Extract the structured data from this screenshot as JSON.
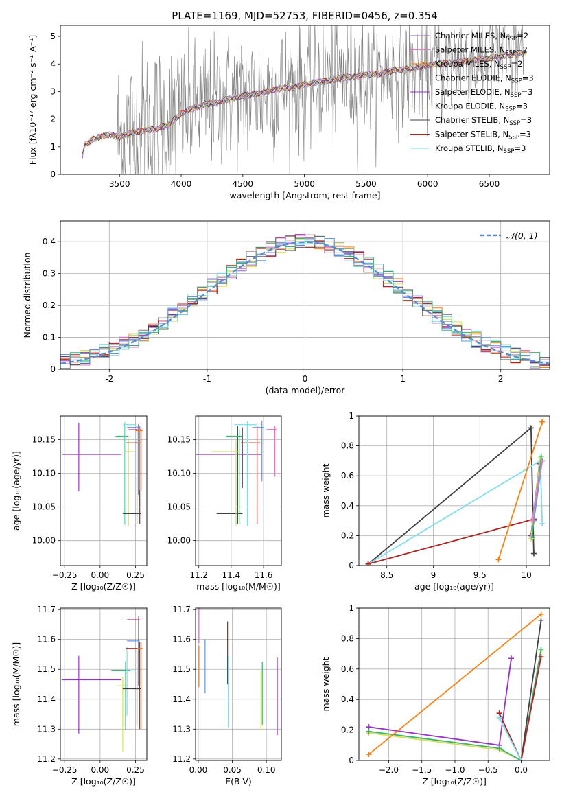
{
  "figure_title": "PLATE=1169, MJD=52753, FIBERID=0456, z=0.354",
  "colors": {
    "Chabrier MILES": "#9467bd",
    "Salpeter MILES": "#e377c2",
    "Kroupa MILES": "#ff7f0e",
    "Chabrier ELODIE": "#7f7f7f",
    "Salpeter ELODIE": "#9932cc",
    "Kroupa ELODIE": "#d4e157",
    "Chabrier STELIB": "#404040",
    "Salpeter STELIB": "#b22222",
    "Kroupa STELIB": "#80deea",
    "extra_blue": "#6495ed",
    "extra_green": "#3cb371",
    "normal_curve": "#5b8bd4",
    "grid": "#b0b0b0"
  },
  "chart_data": [
    {
      "id": "spectrum",
      "type": "line",
      "title": "PLATE=1169, MJD=52753, FIBERID=0456, z=0.354",
      "xlabel": "wavelength [Angstrom, rest frame]",
      "ylabel": "Flux [fλ10⁻¹⁷ erg cm⁻² s⁻¹ A⁻¹]",
      "xlim": [
        3020,
        6990
      ],
      "ylim": [
        0,
        5.4
      ],
      "xticks": [
        3500,
        4000,
        4500,
        5000,
        5500,
        6000,
        6500
      ],
      "yticks": [
        0,
        1,
        2,
        3,
        4,
        5
      ],
      "grid": false,
      "legend_position": "upper right",
      "legend": [
        {
          "label": "Chabrier MILES, N",
          "sub": "SSP",
          "suffix": "=2",
          "color": "#9467bd"
        },
        {
          "label": "Salpeter MILES, N",
          "sub": "SSP",
          "suffix": "=2",
          "color": "#e377c2"
        },
        {
          "label": "Kroupa MILES, N",
          "sub": "SSP",
          "suffix": "=2",
          "color": "#ff7f0e"
        },
        {
          "label": "Chabrier ELODIE, N",
          "sub": "SSP",
          "suffix": "=3",
          "color": "#7f7f7f"
        },
        {
          "label": "Salpeter ELODIE, N",
          "sub": "SSP",
          "suffix": "=3",
          "color": "#9932cc"
        },
        {
          "label": "Kroupa ELODIE, N",
          "sub": "SSP",
          "suffix": "=3",
          "color": "#d4e157"
        },
        {
          "label": "Chabrier STELIB, N",
          "sub": "SSP",
          "suffix": "=3",
          "color": "#404040"
        },
        {
          "label": "Salpeter STELIB, N",
          "sub": "SSP",
          "suffix": "=3",
          "color": "#b22222"
        },
        {
          "label": "Kroupa STELIB, N",
          "sub": "SSP",
          "suffix": "=3",
          "color": "#80deea"
        }
      ],
      "model_continuum": {
        "x": [
          3200,
          3220,
          3300,
          3400,
          3500,
          3600,
          3700,
          3800,
          3900,
          4000,
          4100,
          4200,
          4300,
          4400,
          4500,
          4600,
          4700,
          4800,
          4900,
          5000,
          5100,
          5200,
          5300,
          5400,
          5500,
          5600,
          5700,
          5800,
          5900,
          6000,
          6100,
          6200,
          6300,
          6400,
          6500,
          6600,
          6700,
          6800
        ],
        "y": [
          0.7,
          1.1,
          1.3,
          1.45,
          1.35,
          1.5,
          1.6,
          1.65,
          1.8,
          2.2,
          2.4,
          2.55,
          2.6,
          2.75,
          2.85,
          2.9,
          3.0,
          3.1,
          3.15,
          3.25,
          3.35,
          3.4,
          3.5,
          3.55,
          3.6,
          3.65,
          3.75,
          3.8,
          3.85,
          3.95,
          4.0,
          4.05,
          4.1,
          4.15,
          4.2,
          4.3,
          4.35,
          4.4
        ]
      },
      "observed_data_range": [
        3480,
        6790
      ]
    },
    {
      "id": "residuals",
      "type": "histogram",
      "xlabel": "(data-model)/error",
      "ylabel": "Normed distribution",
      "xlim": [
        -2.5,
        2.5
      ],
      "ylim": [
        0,
        0.465
      ],
      "xticks": [
        -2,
        -1,
        0,
        1,
        2
      ],
      "yticks": [
        0.0,
        0.1,
        0.2,
        0.3,
        0.4
      ],
      "grid": true,
      "legend_position": "upper right",
      "legend": [
        {
          "label": "𝒩(0, 1)",
          "color": "#5b8bd4",
          "style": "dashed"
        }
      ],
      "bin_width": 0.1,
      "bin_start": -2.5,
      "series_count": 11
    },
    {
      "id": "age-vs-Z",
      "type": "errorbar",
      "xlabel": "Z [log₁₀(Z/Z☉)]",
      "ylabel": "age  [log₁₀(age/yr)]",
      "xlim": [
        -0.28,
        0.33
      ],
      "ylim": [
        9.963,
        10.185
      ],
      "xticks": [
        -0.25,
        0.0,
        0.25
      ],
      "xticklabels": [
        "−0.25",
        "0.00",
        "0.25"
      ],
      "yticks": [
        10.0,
        10.05,
        10.1,
        10.15
      ],
      "yticklabels": [
        "10.00",
        "10.05",
        "10.10",
        "10.15"
      ],
      "grid": true,
      "points": [
        {
          "x": -0.15,
          "xerr": [
            0.12,
            0.3
          ],
          "y": 10.128,
          "yerr": [
            0.055,
            0.047
          ],
          "color": "#9932cc"
        },
        {
          "x": 0.17,
          "xerr": [
            0.06,
            0.03
          ],
          "y": 10.155,
          "yerr": [
            0.13,
            0.02
          ],
          "color": "#3cb371"
        },
        {
          "x": 0.18,
          "xerr": [
            0.02,
            0.07
          ],
          "y": 10.172,
          "yerr": [
            0.15,
            0.005
          ],
          "color": "#80deea"
        },
        {
          "x": 0.2,
          "xerr": [
            0.03,
            0.05
          ],
          "y": 10.132,
          "yerr": [
            0.11,
            0.02
          ],
          "color": "#d4e157"
        },
        {
          "x": 0.26,
          "xerr": [
            0.1,
            0.03
          ],
          "y": 10.04,
          "yerr": [
            0.015,
            0.13
          ],
          "color": "#404040"
        },
        {
          "x": 0.28,
          "xerr": [
            0.1,
            0.01
          ],
          "y": 10.145,
          "yerr": [
            0.12,
            0.025
          ],
          "color": "#b22222"
        },
        {
          "x": 0.28,
          "xerr": [
            0.08,
            0.01
          ],
          "y": 10.165,
          "yerr": [
            0.09,
            0.005
          ],
          "color": "#e377c2"
        },
        {
          "x": 0.29,
          "xerr": [
            0.04,
            0.01
          ],
          "y": 10.163,
          "yerr": [
            0.09,
            0.005
          ],
          "color": "#ff7f0e"
        },
        {
          "x": 0.27,
          "xerr": [
            0.08,
            0.01
          ],
          "y": 10.168,
          "yerr": [
            0.1,
            0.005
          ],
          "color": "#6495ed"
        }
      ]
    },
    {
      "id": "age-vs-mass",
      "type": "errorbar",
      "xlabel": "mass [log₁₀(M/M☉)]",
      "ylabel": "",
      "xlim": [
        11.18,
        11.71
      ],
      "ylim": [
        9.963,
        10.185
      ],
      "xticks": [
        11.2,
        11.4,
        11.6
      ],
      "yticks": [
        10.0,
        10.05,
        10.1,
        10.15
      ],
      "yticklabels": [
        "10.00",
        "10.05",
        "10.10",
        "10.15"
      ],
      "grid": true,
      "points": [
        {
          "x": 11.47,
          "xerr": [
            0.3,
            0.12
          ],
          "y": 10.128,
          "yerr": [
            0.05,
            0.04
          ],
          "color": "#9932cc"
        },
        {
          "x": 11.44,
          "xerr": [
            0.13,
            0.03
          ],
          "y": 10.04,
          "yerr": [
            0.015,
            0.13
          ],
          "color": "#404040"
        },
        {
          "x": 11.45,
          "xerr": [
            0.08,
            0.02
          ],
          "y": 10.155,
          "yerr": [
            0.13,
            0.01
          ],
          "color": "#3cb371"
        },
        {
          "x": 11.43,
          "xerr": [
            0.15,
            0.02
          ],
          "y": 10.132,
          "yerr": [
            0.11,
            0.02
          ],
          "color": "#d4e157"
        },
        {
          "x": 11.56,
          "xerr": [
            0.1,
            0.02
          ],
          "y": 10.145,
          "yerr": [
            0.12,
            0.025
          ],
          "color": "#b22222"
        },
        {
          "x": 11.5,
          "xerr": [
            0.08,
            0.06
          ],
          "y": 10.172,
          "yerr": [
            0.15,
            0.005
          ],
          "color": "#80deea"
        },
        {
          "x": 11.59,
          "xerr": [
            0.06,
            0.01
          ],
          "y": 10.168,
          "yerr": [
            0.08,
            0.01
          ],
          "color": "#6495ed"
        },
        {
          "x": 11.67,
          "xerr": [
            0.05,
            0.01
          ],
          "y": 10.165,
          "yerr": [
            0.07,
            0.005
          ],
          "color": "#e377c2"
        }
      ]
    },
    {
      "id": "weight-vs-age",
      "type": "line",
      "xlabel": "age  [log₁₀(age/yr)]",
      "ylabel": "mass weight",
      "xlim": [
        8.2,
        10.25
      ],
      "ylim": [
        0,
        1.0
      ],
      "xticks": [
        8.5,
        9.0,
        9.5,
        10.0
      ],
      "yticks": [
        0.0,
        0.2,
        0.4,
        0.6,
        0.8,
        1.0
      ],
      "grid": true,
      "series": [
        {
          "color": "#404040",
          "x": [
            8.3,
            10.05,
            10.08
          ],
          "y": [
            0.01,
            0.92,
            0.08
          ]
        },
        {
          "color": "#80deea",
          "x": [
            8.3,
            10.15,
            10.17
          ],
          "y": [
            0.01,
            0.7,
            0.28
          ]
        },
        {
          "color": "#b22222",
          "x": [
            8.3,
            10.08,
            10.14
          ],
          "y": [
            0.01,
            0.31,
            0.68
          ]
        },
        {
          "color": "#ff7f0e",
          "x": [
            9.7,
            10.17
          ],
          "y": [
            0.04,
            0.96
          ]
        },
        {
          "color": "#9932cc",
          "x": [
            10.05,
            10.14
          ],
          "y": [
            0.2,
            0.68
          ]
        },
        {
          "color": "#d4e157",
          "x": [
            10.05,
            10.15
          ],
          "y": [
            0.18,
            0.72
          ]
        },
        {
          "color": "#3cb371",
          "x": [
            10.06,
            10.16
          ],
          "y": [
            0.19,
            0.73
          ]
        },
        {
          "color": "#6495ed",
          "x": [
            10.08,
            10.17
          ],
          "y": [
            0.3,
            0.7
          ]
        },
        {
          "color": "#e377c2",
          "x": [
            10.06,
            10.17
          ],
          "y": [
            0.3,
            0.7
          ]
        }
      ]
    },
    {
      "id": "mass-vs-Z",
      "type": "errorbar",
      "xlabel": "Z [log₁₀(Z/Z☉)]",
      "ylabel": "mass [log₁₀(M/M☉)]",
      "xlim": [
        -0.28,
        0.33
      ],
      "ylim": [
        11.195,
        11.705
      ],
      "xticks": [
        -0.25,
        0.0,
        0.25
      ],
      "xticklabels": [
        "−0.25",
        "0.00",
        "0.25"
      ],
      "yticks": [
        11.2,
        11.3,
        11.4,
        11.5,
        11.6,
        11.7
      ],
      "grid": true,
      "points": [
        {
          "x": -0.15,
          "xerr": [
            0.12,
            0.3
          ],
          "y": 11.465,
          "yerr": [
            0.18,
            0.08
          ],
          "color": "#9932cc"
        },
        {
          "x": 0.16,
          "xerr": [
            0.04,
            0.03
          ],
          "y": 11.445,
          "yerr": [
            0.22,
            0.03
          ],
          "color": "#d4e157"
        },
        {
          "x": 0.18,
          "xerr": [
            0.1,
            0.03
          ],
          "y": 11.497,
          "yerr": [
            0.2,
            0.03
          ],
          "color": "#3cb371"
        },
        {
          "x": 0.19,
          "xerr": [
            0.02,
            0.06
          ],
          "y": 11.495,
          "yerr": [
            0.15,
            0.08
          ],
          "color": "#80deea"
        },
        {
          "x": 0.26,
          "xerr": [
            0.1,
            0.03
          ],
          "y": 11.435,
          "yerr": [
            0.12,
            0.13
          ],
          "color": "#404040"
        },
        {
          "x": 0.28,
          "xerr": [
            0.1,
            0.01
          ],
          "y": 11.57,
          "yerr": [
            0.27,
            0.02
          ],
          "color": "#b22222"
        },
        {
          "x": 0.27,
          "xerr": [
            0.08,
            0.01
          ],
          "y": 11.667,
          "yerr": [
            0.15,
            0.01
          ],
          "color": "#e377c2"
        },
        {
          "x": 0.29,
          "xerr": [
            0.03,
            0.01
          ],
          "y": 11.57,
          "yerr": [
            0.27,
            0.02
          ],
          "color": "#ff7f0e"
        },
        {
          "x": 0.27,
          "xerr": [
            0.08,
            0.01
          ],
          "y": 11.595,
          "yerr": [
            0.15,
            0.01
          ],
          "color": "#6495ed"
        }
      ]
    },
    {
      "id": "mass-vs-ebv",
      "type": "errorbar",
      "xlabel": "E(B-V)",
      "ylabel": "",
      "xlim": [
        -0.004,
        0.122
      ],
      "ylim": [
        11.195,
        11.705
      ],
      "xticks": [
        0.0,
        0.05,
        0.1
      ],
      "xticklabels": [
        "0.00",
        "0.05",
        "0.10"
      ],
      "yticks": [
        11.2,
        11.3,
        11.4,
        11.5,
        11.6,
        11.7
      ],
      "grid": true,
      "points": [
        {
          "x": 0.001,
          "y": 11.667,
          "yerr": [
            0.08,
            0.04
          ],
          "color": "#e377c2"
        },
        {
          "x": 0.001,
          "y": 11.57,
          "yerr": [
            0.13,
            0.01
          ],
          "color": "#ff7f0e"
        },
        {
          "x": 0.01,
          "y": 11.56,
          "yerr": [
            0.14,
            0.04
          ],
          "color": "#6495ed"
        },
        {
          "x": 0.043,
          "y": 11.57,
          "yerr": [
            0.12,
            0.09
          ],
          "color": "#b22222"
        },
        {
          "x": 0.044,
          "y": 11.435,
          "yerr": [
            0.13,
            0.11
          ],
          "color": "#80deea"
        },
        {
          "x": 0.092,
          "y": 11.445,
          "yerr": [
            0.15,
            0.05
          ],
          "color": "#d4e157"
        },
        {
          "x": 0.094,
          "y": 11.445,
          "yerr": [
            0.13,
            0.08
          ],
          "color": "#3cb371"
        },
        {
          "x": 0.116,
          "y": 11.47,
          "yerr": [
            0.19,
            0.07
          ],
          "color": "#9932cc"
        }
      ]
    },
    {
      "id": "weight-vs-Z",
      "type": "line",
      "xlabel": "Z [log₁₀(Z/Z☉)]",
      "ylabel": "mass weight",
      "xlim": [
        -2.45,
        0.43
      ],
      "ylim": [
        0,
        1.0
      ],
      "xticks": [
        -2.0,
        -1.5,
        -1.0,
        -0.5,
        0.0
      ],
      "xticklabels": [
        "−2.0",
        "−1.5",
        "−1.0",
        "−0.5",
        "0.0"
      ],
      "yticks": [
        0.0,
        0.2,
        0.4,
        0.6,
        0.8,
        1.0
      ],
      "grid": true,
      "series": [
        {
          "color": "#9932cc",
          "x": [
            -2.3,
            -0.33,
            -0.15
          ],
          "y": [
            0.22,
            0.1,
            0.67
          ]
        },
        {
          "color": "#d4e157",
          "x": [
            -2.3,
            -0.33,
            0.0,
            0.3
          ],
          "y": [
            0.18,
            0.07,
            0.0,
            0.72
          ]
        },
        {
          "color": "#3cb371",
          "x": [
            -2.3,
            -0.33,
            0.0,
            0.3
          ],
          "y": [
            0.19,
            0.08,
            0.0,
            0.73
          ]
        },
        {
          "color": "#404040",
          "x": [
            0.0,
            0.3
          ],
          "y": [
            0.0,
            0.92
          ]
        },
        {
          "color": "#b22222",
          "x": [
            -0.33,
            0.0,
            0.3
          ],
          "y": [
            0.31,
            0.0,
            0.68
          ]
        },
        {
          "color": "#80deea",
          "x": [
            -0.33,
            0.0
          ],
          "y": [
            0.28,
            0.0
          ]
        },
        {
          "color": "#ff7f0e",
          "x": [
            -2.3,
            0.3
          ],
          "y": [
            0.04,
            0.96
          ]
        }
      ]
    }
  ]
}
